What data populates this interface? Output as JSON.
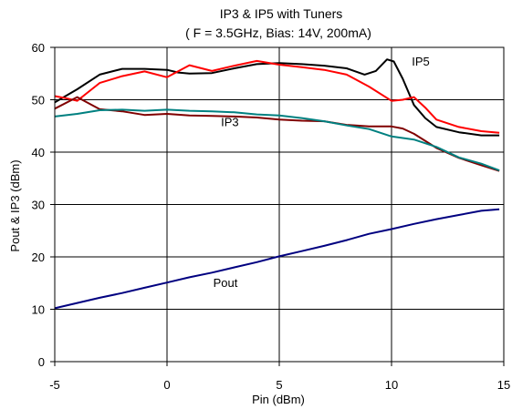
{
  "chart_data": {
    "type": "line",
    "title": "IP3 & IP5 with Tuners",
    "subtitle": "( F = 3.5GHz, Bias: 14V, 200mA)",
    "xlabel": "Pin (dBm)",
    "ylabel": "Pout & IP3 (dBm)",
    "xlim": [
      -5,
      15
    ],
    "ylim": [
      0,
      60
    ],
    "xticks": [
      -5,
      0,
      5,
      10,
      15
    ],
    "yticks": [
      0,
      10,
      20,
      30,
      40,
      50,
      60
    ],
    "grid": true,
    "legend": "none",
    "annotations": [
      {
        "text": "IP5",
        "x": 11.3,
        "y": 56.5
      },
      {
        "text": "IP3",
        "x": 2.8,
        "y": 45.0
      },
      {
        "text": "Pout",
        "x": 2.6,
        "y": 14.3
      }
    ],
    "series": [
      {
        "color": "#000000",
        "x": [
          -5,
          -4,
          -3,
          -2,
          -1,
          0,
          0.5,
          1,
          2,
          3,
          4,
          5,
          6,
          7,
          8,
          8.8,
          9.3,
          9.8,
          10.1,
          10.5,
          11,
          11.5,
          12,
          13,
          14,
          14.8
        ],
        "y": [
          49.5,
          52,
          54.8,
          55.9,
          55.9,
          55.7,
          55.2,
          55.0,
          55.1,
          56.0,
          56.8,
          57.0,
          56.8,
          56.5,
          56.0,
          54.8,
          55.5,
          57.7,
          57.3,
          54.0,
          49.0,
          46.5,
          44.8,
          43.8,
          43.2,
          43.2
        ]
      },
      {
        "color": "#ff0000",
        "x": [
          -5,
          -4.5,
          -4,
          -3.5,
          -3,
          -2,
          -1,
          0,
          1,
          2,
          3,
          4,
          5,
          6,
          7,
          8,
          9,
          10,
          10.5,
          11,
          11.5,
          12,
          13,
          14,
          14.8
        ],
        "y": [
          50.7,
          50.3,
          49.8,
          51.5,
          53.2,
          54.5,
          55.4,
          54.3,
          56.6,
          55.5,
          56.5,
          57.4,
          56.7,
          56.2,
          55.7,
          54.8,
          52.5,
          49.8,
          50.0,
          50.5,
          48.5,
          46.2,
          44.8,
          44.0,
          43.7
        ]
      },
      {
        "color": "#800000",
        "x": [
          -5,
          -4,
          -3,
          -2,
          -1,
          0,
          1,
          2,
          3,
          4,
          5,
          6,
          7,
          8,
          9,
          10,
          10.5,
          11,
          12,
          13,
          14,
          14.8
        ],
        "y": [
          48.3,
          50.5,
          48.2,
          47.8,
          47.1,
          47.3,
          47.0,
          46.9,
          46.8,
          46.6,
          46.2,
          46.0,
          45.9,
          45.2,
          44.9,
          44.9,
          44.5,
          43.5,
          40.8,
          38.9,
          37.5,
          36.4
        ]
      },
      {
        "color": "#008080",
        "x": [
          -5,
          -4,
          -3,
          -2,
          -1,
          0,
          1,
          2,
          3,
          4,
          5,
          6,
          7,
          8,
          9,
          10,
          11,
          12,
          13,
          14,
          14.8
        ],
        "y": [
          46.8,
          47.3,
          48.0,
          48.1,
          47.9,
          48.1,
          47.9,
          47.8,
          47.6,
          47.2,
          47.0,
          46.5,
          45.9,
          45.1,
          44.4,
          43.0,
          42.4,
          41.0,
          39.0,
          37.8,
          36.5
        ]
      },
      {
        "color": "#000080",
        "x": [
          -5,
          -4,
          -3,
          -2,
          -1,
          0,
          1,
          2,
          3,
          4,
          5,
          6,
          7,
          8,
          9,
          10,
          11,
          12,
          13,
          14,
          14.8
        ],
        "y": [
          10.2,
          11.2,
          12.2,
          13.1,
          14.1,
          15.1,
          16.1,
          17.0,
          18.0,
          19.0,
          20.1,
          21.1,
          22.1,
          23.2,
          24.4,
          25.3,
          26.3,
          27.2,
          28.0,
          28.8,
          29.1
        ]
      }
    ]
  }
}
